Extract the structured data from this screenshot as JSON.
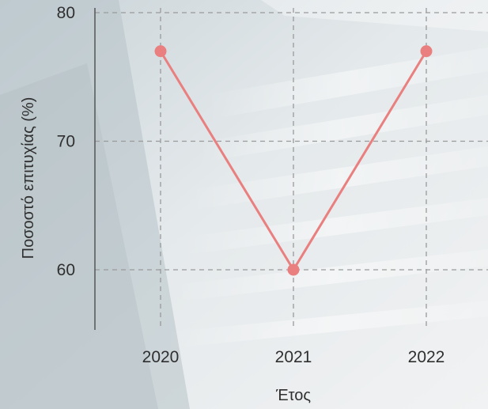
{
  "chart_data": {
    "type": "line",
    "title": "",
    "xlabel": "Έτος",
    "ylabel": "Ποσοστό επιτυχίας (%)",
    "categories": [
      "2020",
      "2021",
      "2022"
    ],
    "series": [
      {
        "values": [
          77,
          60,
          77
        ]
      }
    ],
    "ylim": [
      55,
      80
    ],
    "yticks": [
      60,
      70,
      80
    ],
    "ytick_labels": [
      "60",
      "70",
      "80"
    ],
    "grid": true,
    "grid_style": "dashed",
    "colors": {
      "series": "#e97f7f",
      "grid": "#9a9a9a",
      "axis": "#555555",
      "text": "#2f2f2f"
    }
  }
}
